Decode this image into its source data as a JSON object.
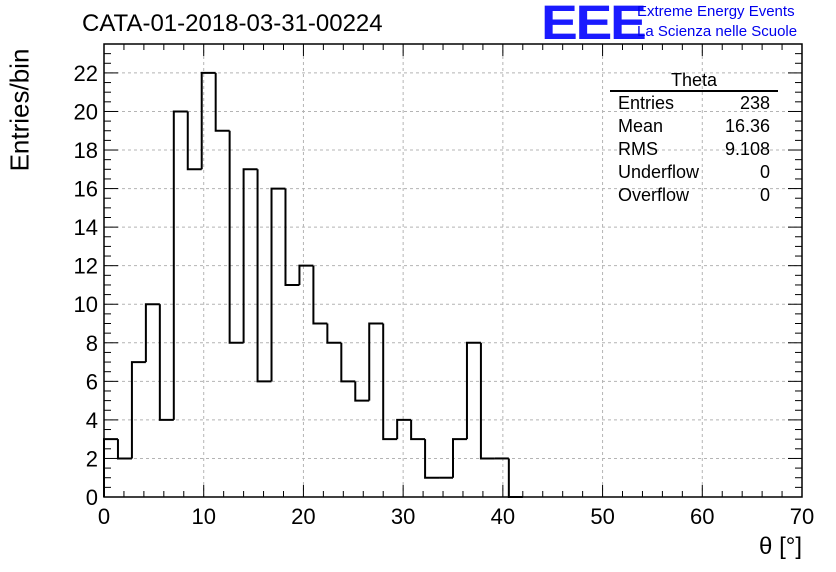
{
  "header": {
    "title": "CATA-01-2018-03-31-00224",
    "logo_text": "EEE",
    "brand_line1": "Extreme Energy Events",
    "brand_line2": "La Scienza nelle Scuole",
    "brand_color": "#0000ee"
  },
  "stats_box": {
    "title": "Theta",
    "rows": [
      {
        "label": "Entries",
        "value": "238"
      },
      {
        "label": "Mean",
        "value": "16.36"
      },
      {
        "label": "RMS",
        "value": "9.108"
      },
      {
        "label": "Underflow",
        "value": "0"
      },
      {
        "label": "Overflow",
        "value": "0"
      }
    ]
  },
  "chart_data": {
    "type": "bar",
    "histogram": true,
    "xlabel": "θ [°]",
    "ylabel": "Entries/bin",
    "xlim": [
      0,
      70
    ],
    "ylim": [
      0,
      23.5
    ],
    "x_ticks": [
      0,
      10,
      20,
      30,
      40,
      50,
      60,
      70
    ],
    "y_ticks": [
      0,
      2,
      4,
      6,
      8,
      10,
      12,
      14,
      16,
      18,
      20,
      22
    ],
    "grid": true,
    "bin_width": 1.4,
    "bin_edges_start": 0,
    "values": [
      3,
      2,
      7,
      10,
      4,
      20,
      17,
      22,
      19,
      8,
      17,
      6,
      16,
      11,
      12,
      9,
      8,
      6,
      5,
      9,
      3,
      4,
      3,
      1,
      1,
      3,
      8,
      2,
      2,
      0,
      0,
      0,
      0,
      0,
      0,
      0,
      0,
      0,
      0,
      0,
      0,
      0,
      0,
      0,
      0,
      0,
      0,
      0,
      0,
      0
    ],
    "line_color": "#000000"
  }
}
